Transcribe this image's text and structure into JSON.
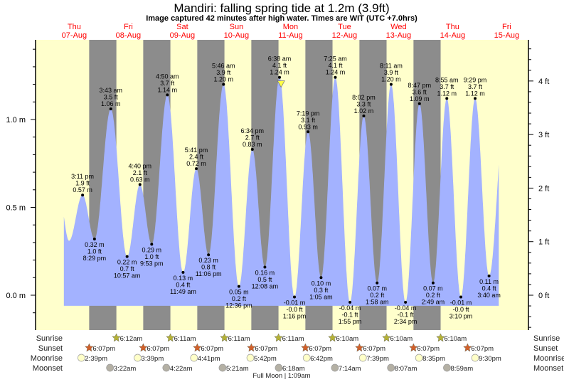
{
  "title": "Mandiri: falling  spring tide at 1.2m (3.9ft)",
  "subtitle": "Image captured 42 minutes after high water. Times are WIT (UTC +7.0hrs)",
  "days": [
    {
      "dow": "Thu",
      "date": "07-Aug"
    },
    {
      "dow": "Fri",
      "date": "08-Aug"
    },
    {
      "dow": "Sat",
      "date": "09-Aug"
    },
    {
      "dow": "Sun",
      "date": "10-Aug"
    },
    {
      "dow": "Mon",
      "date": "11-Aug"
    },
    {
      "dow": "Tue",
      "date": "12-Aug"
    },
    {
      "dow": "Wed",
      "date": "13-Aug"
    },
    {
      "dow": "Thu",
      "date": "14-Aug"
    },
    {
      "dow": "Fri",
      "date": "15-Aug"
    }
  ],
  "colors": {
    "day": "#ffffcc",
    "night": "#8c8c8c",
    "water": "#a3b2ff",
    "dayLabel": "#ff0000",
    "sunrise": "#b5b236",
    "sunset": "#d2602a",
    "moonrise": "#ffffc8",
    "moonset": "#b4b0a4",
    "marker": "#ffff44"
  },
  "chart_data": {
    "type": "area",
    "title": "Mandiri: falling  spring tide at 1.2m (3.9ft)",
    "ylabel_left": "m",
    "ylabel_right": "ft",
    "ylim_m": [
      -0.2,
      1.45
    ],
    "yticks_m": [
      "0.0 m",
      "0.5 m",
      "1.0 m"
    ],
    "yticks_ft": [
      "0 ft",
      "1 ft",
      "2 ft",
      "3 ft",
      "4 ft"
    ],
    "curve_start": {
      "day": 0,
      "time": "6:54 am"
    },
    "curve_end": {
      "day": 8,
      "time": "8:00 am"
    },
    "anchors": [
      {
        "day": 0,
        "time": "5:00 am",
        "m": 0.55
      },
      {
        "day": 0,
        "time": "9:10 am",
        "m": 0.31
      }
    ],
    "end_anchor": {
      "day": 8,
      "time": "11:00 am",
      "m": 1.1
    },
    "extrema": [
      {
        "day": 0,
        "time": "3:11 pm",
        "m": "0.57",
        "ft": "1.9",
        "type": "high"
      },
      {
        "day": 0,
        "time": "8:29 pm",
        "m": "0.32",
        "ft": "1.0",
        "type": "low"
      },
      {
        "day": 1,
        "time": "3:43 am",
        "m": "1.06",
        "ft": "3.5",
        "type": "high"
      },
      {
        "day": 1,
        "time": "10:57 am",
        "m": "0.22",
        "ft": "0.7",
        "type": "low"
      },
      {
        "day": 1,
        "time": "4:40 pm",
        "m": "0.63",
        "ft": "2.1",
        "type": "high"
      },
      {
        "day": 1,
        "time": "9:53 pm",
        "m": "0.29",
        "ft": "1.0",
        "type": "low"
      },
      {
        "day": 2,
        "time": "4:50 am",
        "m": "1.14",
        "ft": "3.7",
        "type": "high"
      },
      {
        "day": 2,
        "time": "11:49 am",
        "m": "0.13",
        "ft": "0.4",
        "type": "low"
      },
      {
        "day": 2,
        "time": "5:41 pm",
        "m": "0.72",
        "ft": "2.4",
        "type": "high"
      },
      {
        "day": 2,
        "time": "11:06 pm",
        "m": "0.23",
        "ft": "0.8",
        "type": "low"
      },
      {
        "day": 3,
        "time": "5:46 am",
        "m": "1.20",
        "ft": "3.9",
        "type": "high"
      },
      {
        "day": 3,
        "time": "12:36 pm",
        "m": "0.05",
        "ft": "0.2",
        "type": "low"
      },
      {
        "day": 3,
        "time": "6:34 pm",
        "m": "0.83",
        "ft": "2.7",
        "type": "high"
      },
      {
        "day": 4,
        "time": "12:08 am",
        "m": "0.16",
        "ft": "0.5",
        "type": "low"
      },
      {
        "day": 4,
        "time": "6:38 am",
        "m": "1.24",
        "ft": "4.1",
        "type": "high"
      },
      {
        "day": 4,
        "time": "1:16 pm",
        "m": "-0.01",
        "ft": "-0.0",
        "type": "low"
      },
      {
        "day": 4,
        "time": "7:19 pm",
        "m": "0.93",
        "ft": "3.1",
        "type": "high"
      },
      {
        "day": 5,
        "time": "1:05 am",
        "m": "0.10",
        "ft": "0.3",
        "type": "low"
      },
      {
        "day": 5,
        "time": "7:25 am",
        "m": "1.24",
        "ft": "4.1",
        "type": "high"
      },
      {
        "day": 5,
        "time": "1:55 pm",
        "m": "-0.04",
        "ft": "-0.1",
        "type": "low"
      },
      {
        "day": 5,
        "time": "8:02 pm",
        "m": "1.02",
        "ft": "3.3",
        "type": "high"
      },
      {
        "day": 6,
        "time": "1:58 am",
        "m": "0.07",
        "ft": "0.2",
        "type": "low"
      },
      {
        "day": 6,
        "time": "8:11 am",
        "m": "1.20",
        "ft": "3.9",
        "type": "high"
      },
      {
        "day": 6,
        "time": "2:34 pm",
        "m": "-0.04",
        "ft": "-0.1",
        "type": "low"
      },
      {
        "day": 6,
        "time": "8:47 pm",
        "m": "1.09",
        "ft": "3.6",
        "type": "high"
      },
      {
        "day": 7,
        "time": "2:49 am",
        "m": "0.07",
        "ft": "0.2",
        "type": "low"
      },
      {
        "day": 7,
        "time": "8:55 am",
        "m": "1.12",
        "ft": "3.7",
        "type": "high"
      },
      {
        "day": 7,
        "time": "3:10 pm",
        "m": "-0.01",
        "ft": "-0.0",
        "type": "low"
      },
      {
        "day": 7,
        "time": "9:29 pm",
        "m": "1.12",
        "ft": "3.7",
        "type": "high"
      },
      {
        "day": 8,
        "time": "3:40 am",
        "m": "0.11",
        "ft": "0.4",
        "type": "low"
      }
    ],
    "current": {
      "day": 4,
      "time": "7:20 am",
      "m": 1.2
    }
  },
  "rows": {
    "sunrise": "Sunrise",
    "sunset": "Sunset",
    "moonrise": "Moonrise",
    "moonset": "Moonset"
  },
  "sunrise": [
    {
      "day": 1,
      "time": "6:12am"
    },
    {
      "day": 2,
      "time": "6:11am"
    },
    {
      "day": 3,
      "time": "6:11am"
    },
    {
      "day": 4,
      "time": "6:11am"
    },
    {
      "day": 5,
      "time": "6:10am"
    },
    {
      "day": 6,
      "time": "6:10am"
    },
    {
      "day": 7,
      "time": "6:10am"
    }
  ],
  "sunset": [
    {
      "day": 0,
      "time": "6:07pm"
    },
    {
      "day": 1,
      "time": "6:07pm"
    },
    {
      "day": 2,
      "time": "6:07pm"
    },
    {
      "day": 3,
      "time": "6:07pm"
    },
    {
      "day": 4,
      "time": "6:07pm"
    },
    {
      "day": 5,
      "time": "6:07pm"
    },
    {
      "day": 6,
      "time": "6:07pm"
    },
    {
      "day": 7,
      "time": "6:07pm"
    }
  ],
  "moonrise": [
    {
      "day": 0,
      "time": "2:39pm"
    },
    {
      "day": 1,
      "time": "3:39pm"
    },
    {
      "day": 2,
      "time": "4:41pm"
    },
    {
      "day": 3,
      "time": "5:42pm"
    },
    {
      "day": 4,
      "time": "6:42pm"
    },
    {
      "day": 5,
      "time": "7:39pm"
    },
    {
      "day": 6,
      "time": "8:35pm"
    },
    {
      "day": 7,
      "time": "9:30pm"
    }
  ],
  "moonset": [
    {
      "day": 1,
      "time": "3:22am"
    },
    {
      "day": 2,
      "time": "4:22am"
    },
    {
      "day": 3,
      "time": "5:21am"
    },
    {
      "day": 4,
      "time": "6:18am"
    },
    {
      "day": 5,
      "time": "7:14am"
    },
    {
      "day": 6,
      "time": "8:07am"
    },
    {
      "day": 7,
      "time": "8:59am"
    }
  ],
  "moon_phase": "Full Moon | 1:09am"
}
